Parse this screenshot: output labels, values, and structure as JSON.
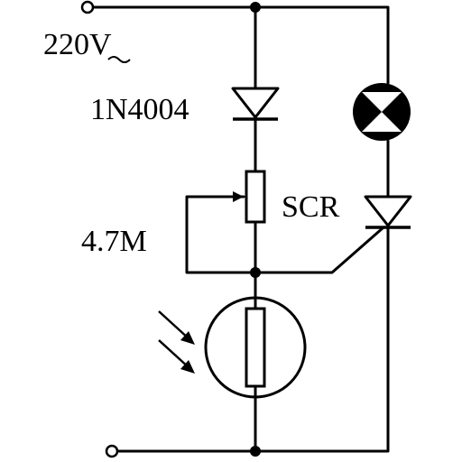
{
  "labels": {
    "voltage": "220V",
    "diode": "1N4004",
    "scr": "SCR",
    "resistor": "4.7M"
  }
}
